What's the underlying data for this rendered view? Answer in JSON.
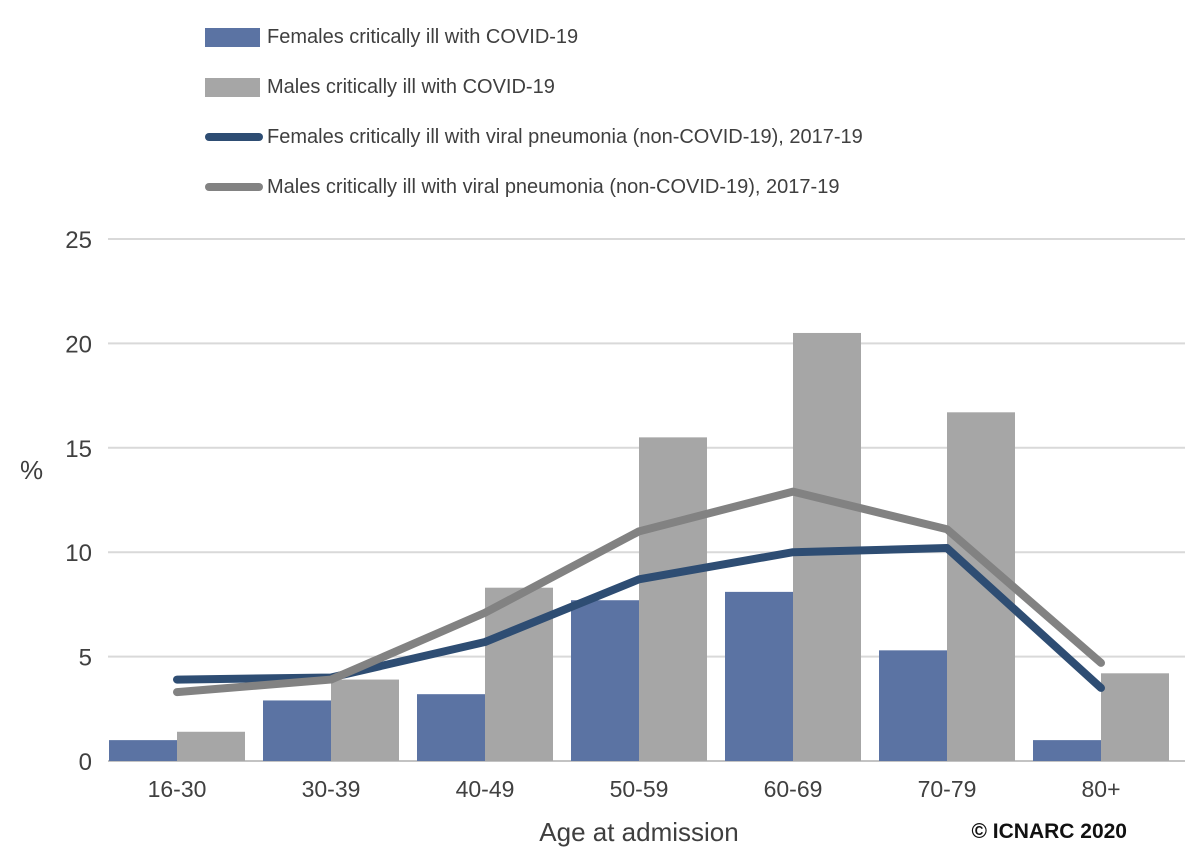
{
  "chart_data": {
    "type": "bar+line",
    "categories": [
      "16-30",
      "30-39",
      "40-49",
      "50-59",
      "60-69",
      "70-79",
      "80+"
    ],
    "bar_series": [
      {
        "name": "Females critically ill with COVID-19",
        "color": "#5B73A3",
        "values": [
          1.0,
          2.9,
          3.2,
          7.7,
          8.1,
          5.3,
          1.0
        ]
      },
      {
        "name": "Males critically ill with COVID-19",
        "color": "#A6A6A6",
        "values": [
          1.4,
          3.9,
          8.3,
          15.5,
          20.5,
          16.7,
          4.2
        ]
      }
    ],
    "line_series": [
      {
        "name": "Females critically ill with viral pneumonia (non-COVID-19), 2017-19",
        "color": "#2E4D73",
        "values": [
          3.9,
          4.0,
          5.7,
          8.7,
          10.0,
          10.2,
          3.5
        ]
      },
      {
        "name": "Males critically ill with viral pneumonia (non-COVID-19), 2017-19",
        "color": "#828282",
        "values": [
          3.3,
          3.9,
          7.1,
          11.0,
          12.9,
          11.1,
          4.7
        ]
      }
    ],
    "title": "",
    "xlabel": "Age at admission",
    "ylabel": "%",
    "yticks": [
      0,
      5,
      10,
      15,
      20,
      25
    ],
    "ylim": [
      0,
      25
    ],
    "grid": true,
    "legend_position": "top-left"
  },
  "footer": {
    "copyright": "© ICNARC 2020"
  }
}
